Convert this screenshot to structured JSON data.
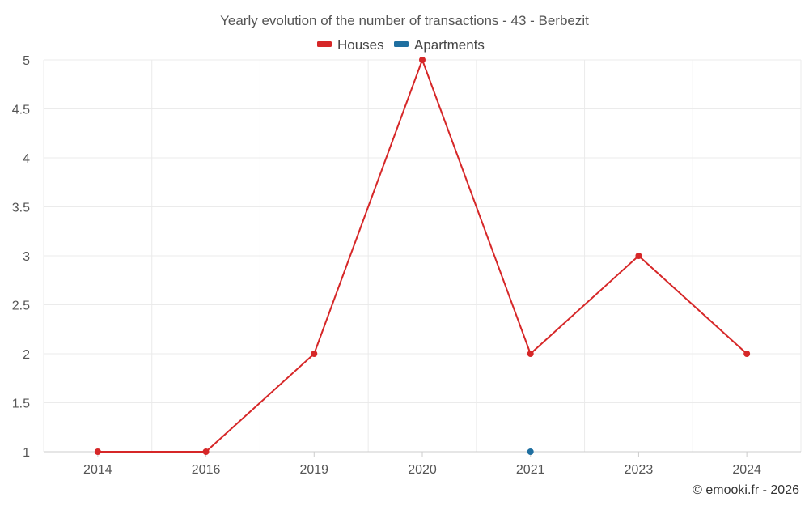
{
  "chart_data": {
    "type": "line",
    "title": "Yearly evolution of the number of transactions - 43 - Berbezit",
    "categories": [
      "2014",
      "2016",
      "2019",
      "2020",
      "2021",
      "2023",
      "2024"
    ],
    "series": [
      {
        "name": "Houses",
        "color": "#d62728",
        "values": [
          1,
          1,
          2,
          5,
          2,
          3,
          2
        ]
      },
      {
        "name": "Apartments",
        "color": "#1f6fa0",
        "values": [
          null,
          null,
          null,
          null,
          1,
          null,
          null
        ]
      }
    ],
    "ylim": [
      1,
      5
    ],
    "yticks": [
      "1",
      "1.5",
      "2",
      "2.5",
      "3",
      "3.5",
      "4",
      "4.5",
      "5"
    ],
    "grid": true,
    "legend_position": "top-center",
    "xlabel": "",
    "ylabel": ""
  },
  "credit": "© emooki.fr - 2026"
}
